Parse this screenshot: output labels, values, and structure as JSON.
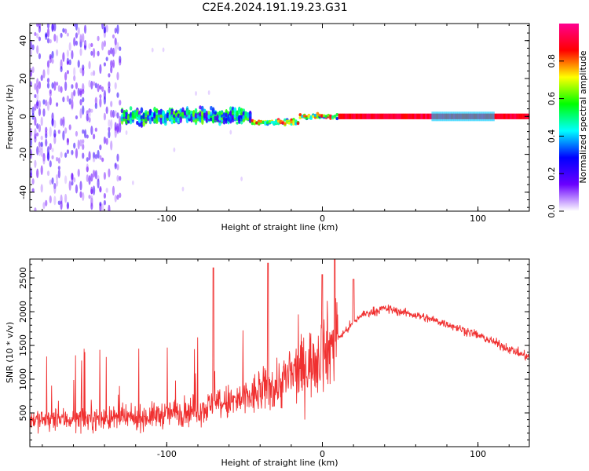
{
  "title": "C2E4.2024.191.19.23.G31",
  "colorbar": {
    "label": "Normalized spectral amplitude",
    "ticks": [
      0.0,
      0.2,
      0.4,
      0.6,
      0.8
    ],
    "tick_labels": [
      "0.0",
      "0.2",
      "0.4",
      "0.6",
      "0.8"
    ],
    "range": [
      0,
      1
    ],
    "colormap": [
      "#ffffff",
      "#6a00ff",
      "#0000ff",
      "#00ffff",
      "#00ff00",
      "#ffff00",
      "#ff0000",
      "#ff0090"
    ]
  },
  "chart_data": [
    {
      "type": "heatmap",
      "title": "",
      "xlabel": "Height of straight line (km)",
      "ylabel": "Frequency (Hz)",
      "xlim": [
        -188,
        133
      ],
      "ylim": [
        -50,
        49
      ],
      "xticks": [
        -100,
        0,
        100
      ],
      "xtick_labels": [
        "-100",
        "0",
        "100"
      ],
      "yticks": [
        -40,
        -20,
        0,
        20,
        40
      ],
      "ytick_labels": [
        "-40",
        "-20",
        "0",
        "20",
        "40"
      ],
      "segments": [
        {
          "x_range": [
            -188,
            -130
          ],
          "pattern": "scattered noise",
          "amplitude": 0.2
        },
        {
          "x_range": [
            -130,
            -45
          ],
          "pattern": "noisy band near 0 Hz",
          "amplitude": 0.5
        },
        {
          "x_range": [
            -45,
            10
          ],
          "pattern": "narrowing line near -3 to 0 Hz",
          "amplitude": 0.85
        },
        {
          "x_range": [
            10,
            133
          ],
          "pattern": "steady line at 0 Hz",
          "amplitude": 0.95
        }
      ]
    },
    {
      "type": "line",
      "title": "",
      "xlabel": "Height of straight line (km)",
      "ylabel": "SNR (10 * v/v)",
      "xlim": [
        -188,
        133
      ],
      "ylim": [
        0,
        2780
      ],
      "xticks": [
        -100,
        0,
        100
      ],
      "xtick_labels": [
        "-100",
        "0",
        "100"
      ],
      "yticks": [
        500,
        1000,
        1500,
        2000,
        2500
      ],
      "ytick_labels": [
        "500",
        "1000",
        "1500",
        "2000",
        "2500"
      ],
      "color": "#f03030",
      "trend": {
        "x": [
          -188,
          -120,
          -80,
          -50,
          -30,
          -10,
          0,
          10,
          25,
          40,
          60,
          80,
          100,
          120,
          133
        ],
        "y": [
          400,
          420,
          550,
          700,
          900,
          1200,
          1400,
          1600,
          1950,
          2050,
          1950,
          1820,
          1650,
          1450,
          1320
        ]
      },
      "peaks": [
        {
          "x": -70,
          "y": 2650
        },
        {
          "x": -35,
          "y": 2720
        },
        {
          "x": 0,
          "y": 2550
        },
        {
          "x": 8,
          "y": 2770
        },
        {
          "x": 20,
          "y": 2480
        }
      ]
    }
  ]
}
